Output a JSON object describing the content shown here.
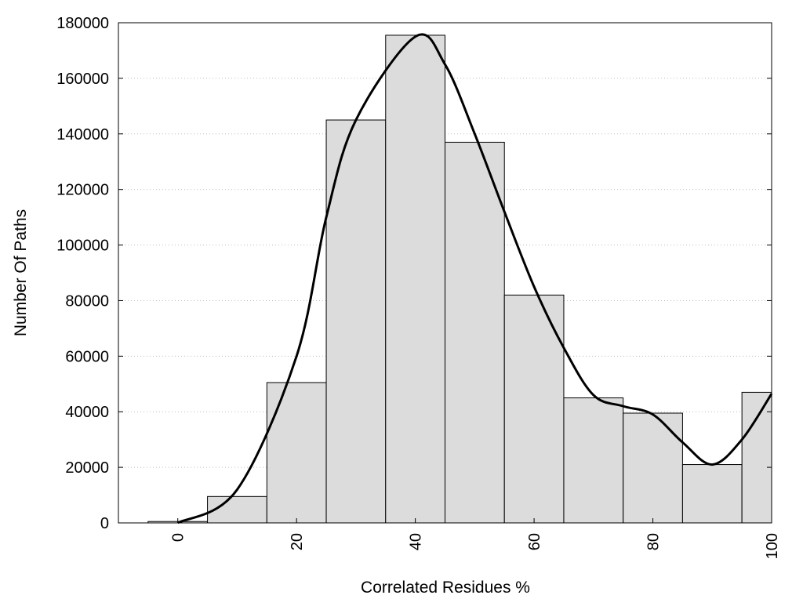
{
  "chart_data": {
    "type": "bar",
    "title": "",
    "xlabel": "Correlated Residues %",
    "ylabel": "Number Of Paths",
    "xlim": [
      -10,
      100
    ],
    "ylim": [
      0,
      180000
    ],
    "grid": true,
    "x": [
      0,
      10,
      20,
      30,
      40,
      50,
      60,
      70,
      80,
      90,
      100
    ],
    "values": [
      500,
      9500,
      50500,
      145000,
      175500,
      137000,
      82000,
      45000,
      39500,
      21000,
      47000
    ],
    "bar_width": 10,
    "bar_color": "#dcdcdc",
    "curve": {
      "x": [
        0,
        10,
        20,
        25,
        30,
        40,
        45,
        50,
        55,
        60,
        65,
        70,
        75,
        80,
        85,
        90,
        95,
        100
      ],
      "y": [
        0,
        12000,
        60000,
        110000,
        145000,
        175000,
        165000,
        140000,
        112000,
        85000,
        63000,
        46000,
        42000,
        39000,
        29000,
        21000,
        30000,
        46500
      ],
      "color": "#000000"
    },
    "x_ticks": [
      0,
      20,
      40,
      60,
      80,
      100
    ],
    "x_tick_labels": [
      "0",
      "20",
      "40",
      "60",
      "80",
      "100"
    ],
    "y_ticks": [
      0,
      20000,
      40000,
      60000,
      80000,
      100000,
      120000,
      140000,
      160000,
      180000
    ],
    "y_tick_labels": [
      "0",
      "20000",
      "40000",
      "60000",
      "80000",
      "100000",
      "120000",
      "140000",
      "160000",
      "180000"
    ]
  }
}
